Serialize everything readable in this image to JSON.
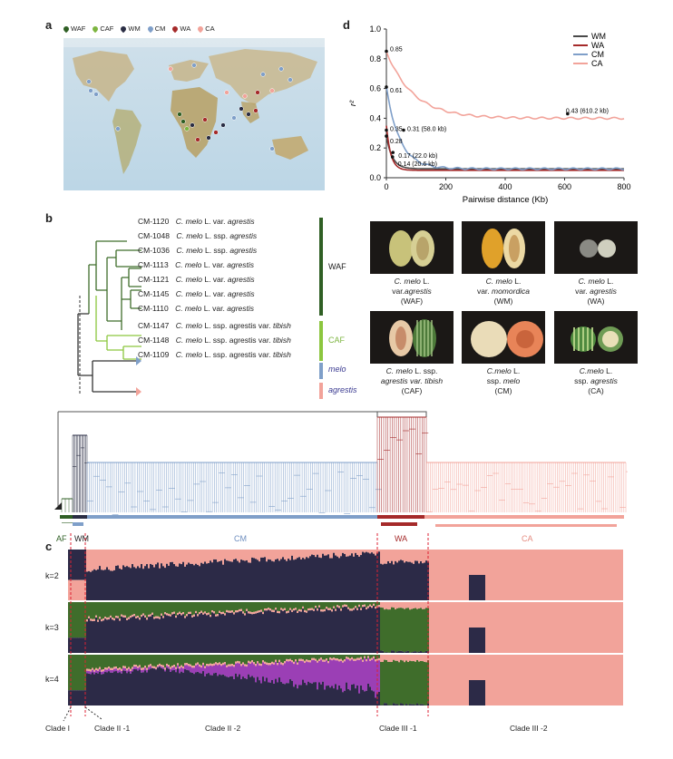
{
  "panel_a": {
    "letter": "a",
    "legend": [
      {
        "label": "WAF",
        "color": "#2f5f24"
      },
      {
        "label": "CAF",
        "color": "#7db540"
      },
      {
        "label": "WM",
        "color": "#2a2d44"
      },
      {
        "label": "CM",
        "color": "#7f9fc9"
      },
      {
        "label": "WA",
        "color": "#a52a2a"
      },
      {
        "label": "CA",
        "color": "#f2a39a"
      }
    ]
  },
  "panel_d": {
    "letter": "d",
    "chart_data": {
      "type": "line",
      "xlabel": "Pairwise distance (Kb)",
      "ylabel": "r²",
      "xlim": [
        0,
        800
      ],
      "ylim": [
        0,
        1.0
      ],
      "xticks": [
        "0",
        "200",
        "400",
        "600",
        "800"
      ],
      "yticks": [
        "0.0",
        "0.2",
        "0.4",
        "0.6",
        "0.8",
        "1.0"
      ],
      "legend_position": "top-right",
      "series": [
        {
          "name": "WM",
          "color": "#4a4a4a",
          "start": 0.28,
          "end": 0.06,
          "decay": 20
        },
        {
          "name": "WA",
          "color": "#a52a2a",
          "start": 0.35,
          "end": 0.05,
          "decay": 15
        },
        {
          "name": "CM",
          "color": "#7f9fc9",
          "start": 0.61,
          "end": 0.06,
          "decay": 45
        },
        {
          "name": "CA",
          "color": "#f2a39a",
          "start": 0.85,
          "end": 0.4,
          "decay": 90
        }
      ],
      "annotations": [
        {
          "text": "0.85",
          "x": 0,
          "y": 0.85
        },
        {
          "text": "0.61",
          "x": 0,
          "y": 0.61
        },
        {
          "text": "0.35",
          "x": 0,
          "y": 0.32
        },
        {
          "text": "0.31 (58.0 kb)",
          "x": 58,
          "y": 0.32
        },
        {
          "text": "0.28",
          "x": 0,
          "y": 0.28
        },
        {
          "text": "0.17 (22.0 kb)",
          "x": 22,
          "y": 0.17
        },
        {
          "text": "0.14 (20.6 kb)",
          "x": 20.6,
          "y": 0.14
        },
        {
          "text": "0.43 (610.2 kb)",
          "x": 610.2,
          "y": 0.43
        }
      ]
    }
  },
  "panel_b": {
    "letter": "b",
    "accessions": [
      {
        "id": "CM-1120",
        "species": "C. melo",
        "rest": " L. var. ",
        "taxon": "agrestis"
      },
      {
        "id": "CM-1048",
        "species": "C. melo",
        "rest": " L. ssp. ",
        "taxon": "agrestis"
      },
      {
        "id": "CM-1036",
        "species": "C. melo",
        "rest": " L. ssp. ",
        "taxon": "agrestis"
      },
      {
        "id": "CM-1113",
        "species": "C. melo",
        "rest": " L. var. ",
        "taxon": "agrestis"
      },
      {
        "id": "CM-1121",
        "species": "C. melo",
        "rest": " L. var. ",
        "taxon": "agrestis"
      },
      {
        "id": "CM-1145",
        "species": "C. melo",
        "rest": " L. var. ",
        "taxon": "agrestis"
      },
      {
        "id": "CM-1110",
        "species": "C. melo",
        "rest": " L. var. ",
        "taxon": "agrestis"
      },
      {
        "id": "CM-1147",
        "species": "C. melo",
        "rest": " L. ssp. agrestis var. ",
        "taxon": "tibish"
      },
      {
        "id": "CM-1148",
        "species": "C. melo",
        "rest": " L. ssp. agrestis var. ",
        "taxon": "tibish"
      },
      {
        "id": "CM-1109",
        "species": "C. melo",
        "rest": " L. ssp. agrestis var. ",
        "taxon": "tibish"
      }
    ],
    "group_waf": "WAF",
    "group_caf": "CAF",
    "group_melo": "melo",
    "group_agrestis": "agrestis",
    "fruits": [
      {
        "line1_i": "C. melo",
        "line1": " L.",
        "line2": "var.",
        "line2_i": "agrestis",
        "line3": "(WAF)"
      },
      {
        "line1_i": "C. melo",
        "line1": " L.",
        "line2": "var. ",
        "line2_i": "momordica",
        "line3": "(WM)"
      },
      {
        "line1_i": "C. melo",
        "line1": " L.",
        "line2": "var. ",
        "line2_i": "agrestis",
        "line3": "(WA)"
      },
      {
        "line1_i": "C. melo",
        "line1": " L. ssp.",
        "line2": "",
        "line2_i": "agrestis var. tibish",
        "line3": "(CAF)"
      },
      {
        "line1_i": "C.melo",
        "line1": " L.",
        "line2": "ssp. ",
        "line2_i": "melo",
        "line3": "(CM)"
      },
      {
        "line1_i": "C.melo",
        "line1": " L.",
        "line2": "ssp. ",
        "line2_i": "agrestis",
        "line3": "(CA)"
      }
    ]
  },
  "panel_c": {
    "letter": "c",
    "groups": [
      "AF",
      "WM",
      "CM",
      "WA",
      "CA"
    ],
    "k_labels": [
      "k=2",
      "k=3",
      "k=4"
    ],
    "clades": [
      "Clade I",
      "Clade II -1",
      "Clade II -2",
      "Clade III -1",
      "Clade III -2"
    ]
  }
}
